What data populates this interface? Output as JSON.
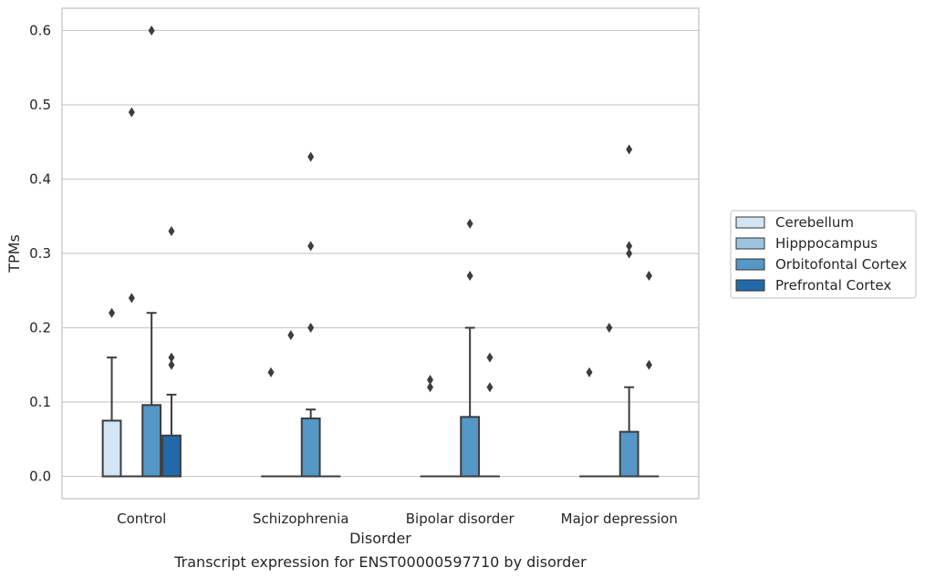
{
  "chart_data": {
    "type": "box",
    "caption": "Transcript expression for ENST00000597710 by disorder",
    "xlabel": "Disorder",
    "ylabel": "TPMs",
    "ylim": [
      -0.03,
      0.63
    ],
    "yticks": [
      0.0,
      0.1,
      0.2,
      0.3,
      0.4,
      0.5,
      0.6
    ],
    "ytick_labels": [
      "0.0",
      "0.1",
      "0.2",
      "0.3",
      "0.4",
      "0.5",
      "0.6"
    ],
    "grid": "horizontal",
    "legend_position": "right",
    "categories": [
      "Control",
      "Schizophrenia",
      "Bipolar disorder",
      "Major depression"
    ],
    "series": [
      {
        "name": "Cerebellum",
        "color": "#d3e4f3",
        "boxes": [
          {
            "q1": 0,
            "median": 0,
            "q3": 0.075,
            "whisker_low": 0,
            "whisker_high": 0.16,
            "outliers": [
              0.22
            ]
          },
          {
            "q1": 0,
            "median": 0,
            "q3": 0,
            "whisker_low": 0,
            "whisker_high": 0,
            "outliers": [
              0.14
            ]
          },
          {
            "q1": 0,
            "median": 0,
            "q3": 0,
            "whisker_low": 0,
            "whisker_high": 0,
            "outliers": [
              0.12,
              0.13
            ]
          },
          {
            "q1": 0,
            "median": 0,
            "q3": 0,
            "whisker_low": 0,
            "whisker_high": 0,
            "outliers": [
              0.14
            ]
          }
        ]
      },
      {
        "name": "Hipppocampus",
        "color": "#9dc4df",
        "boxes": [
          {
            "q1": 0,
            "median": 0,
            "q3": 0,
            "whisker_low": 0,
            "whisker_high": 0,
            "outliers": [
              0.24,
              0.49
            ]
          },
          {
            "q1": 0,
            "median": 0,
            "q3": 0,
            "whisker_low": 0,
            "whisker_high": 0,
            "outliers": [
              0.19
            ]
          },
          {
            "q1": 0,
            "median": 0,
            "q3": 0,
            "whisker_low": 0,
            "whisker_high": 0,
            "outliers": []
          },
          {
            "q1": 0,
            "median": 0,
            "q3": 0,
            "whisker_low": 0,
            "whisker_high": 0,
            "outliers": [
              0.2
            ]
          }
        ]
      },
      {
        "name": "Orbitofontal Cortex",
        "color": "#5597c6",
        "boxes": [
          {
            "q1": 0,
            "median": 0,
            "q3": 0.096,
            "whisker_low": 0,
            "whisker_high": 0.22,
            "outliers": [
              0.6
            ]
          },
          {
            "q1": 0,
            "median": 0,
            "q3": 0.078,
            "whisker_low": 0,
            "whisker_high": 0.09,
            "outliers": [
              0.2,
              0.31,
              0.43
            ]
          },
          {
            "q1": 0,
            "median": 0,
            "q3": 0.08,
            "whisker_low": 0,
            "whisker_high": 0.2,
            "outliers": [
              0.27,
              0.34
            ]
          },
          {
            "q1": 0,
            "median": 0,
            "q3": 0.06,
            "whisker_low": 0,
            "whisker_high": 0.12,
            "outliers": [
              0.3,
              0.31,
              0.44
            ]
          }
        ]
      },
      {
        "name": "Prefrontal Cortex",
        "color": "#2369a9",
        "boxes": [
          {
            "q1": 0,
            "median": 0,
            "q3": 0.055,
            "whisker_low": 0,
            "whisker_high": 0.11,
            "outliers": [
              0.15,
              0.16,
              0.33
            ]
          },
          {
            "q1": 0,
            "median": 0,
            "q3": 0,
            "whisker_low": 0,
            "whisker_high": 0,
            "outliers": []
          },
          {
            "q1": 0,
            "median": 0,
            "q3": 0,
            "whisker_low": 0,
            "whisker_high": 0,
            "outliers": [
              0.12,
              0.16
            ]
          },
          {
            "q1": 0,
            "median": 0,
            "q3": 0,
            "whisker_low": 0,
            "whisker_high": 0,
            "outliers": [
              0.15,
              0.27
            ]
          }
        ]
      }
    ]
  }
}
